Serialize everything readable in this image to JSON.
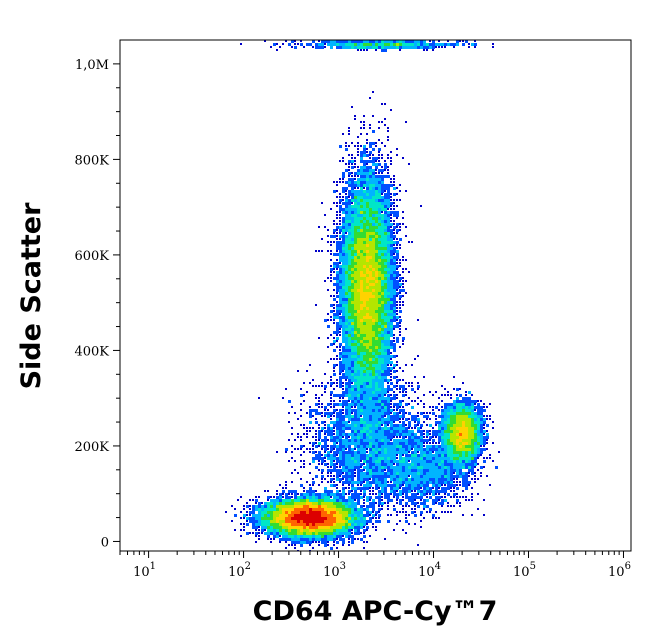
{
  "chart_data": {
    "type": "scatter",
    "subtype": "flow-cytometry-density-dot-plot",
    "title": "",
    "xlabel": "CD64 APC-Cy™7",
    "ylabel": "Side Scatter",
    "x_scale": "log",
    "xlim": [
      5,
      1200000
    ],
    "ylim": [
      -20000,
      1050000
    ],
    "grid": false,
    "legend": "none",
    "x_ticks": [
      {
        "base": "10",
        "exp": "1",
        "value": 10
      },
      {
        "base": "10",
        "exp": "2",
        "value": 100
      },
      {
        "base": "10",
        "exp": "3",
        "value": 1000
      },
      {
        "base": "10",
        "exp": "4",
        "value": 10000
      },
      {
        "base": "10",
        "exp": "5",
        "value": 100000
      },
      {
        "base": "10",
        "exp": "6",
        "value": 1000000
      }
    ],
    "y_ticks": [
      {
        "label": "0",
        "value": 0
      },
      {
        "label": "200K",
        "value": 200000
      },
      {
        "label": "400K",
        "value": 400000
      },
      {
        "label": "600K",
        "value": 600000
      },
      {
        "label": "800K",
        "value": 800000
      },
      {
        "label": "1,0M",
        "value": 1000000
      }
    ],
    "density_colormap": [
      "#0000c8",
      "#0050ff",
      "#00b4ff",
      "#00e6c8",
      "#32dc32",
      "#b4e600",
      "#ffd200",
      "#ff6400",
      "#dc0000"
    ],
    "populations": [
      {
        "x_center": 500,
        "y_center": 50000,
        "x_spread_decades": 0.22,
        "y_spread": 18000,
        "weight": 0.34,
        "peak_density": "high"
      },
      {
        "x_center": 2000,
        "y_center": 530000,
        "x_spread_decades": 0.13,
        "y_spread": 110000,
        "weight": 0.42,
        "peak_density": "medium"
      },
      {
        "x_center": 20000,
        "y_center": 225000,
        "x_spread_decades": 0.1,
        "y_spread": 30000,
        "weight": 0.1,
        "peak_density": "medium"
      },
      {
        "x_center": 2000,
        "y_center": 200000,
        "x_spread_decades": 0.3,
        "y_spread": 70000,
        "weight": 0.08,
        "peak_density": "low"
      },
      {
        "x_center": 8000,
        "y_center": 150000,
        "x_spread_decades": 0.25,
        "y_spread": 40000,
        "weight": 0.04,
        "peak_density": "low"
      },
      {
        "x_center": 3000,
        "y_center": 1040000,
        "x_spread_decades": 0.4,
        "y_spread": 4000,
        "weight": 0.02,
        "peak_density": "low"
      }
    ]
  }
}
